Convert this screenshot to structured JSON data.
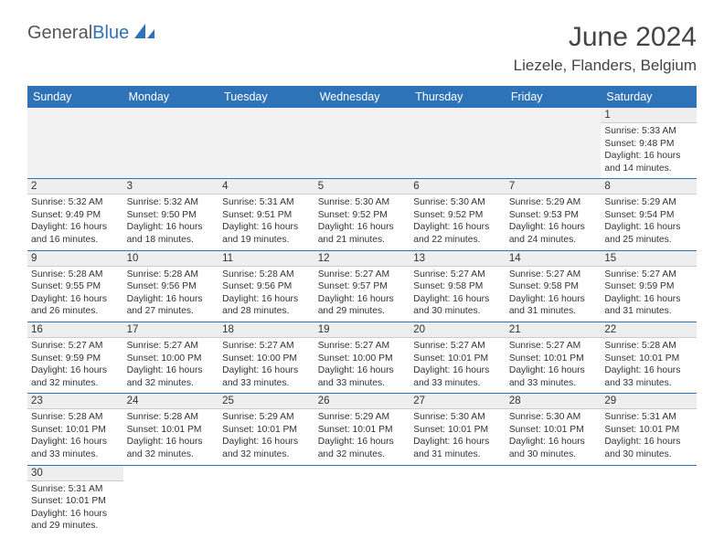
{
  "brand": {
    "part1": "General",
    "part2": "Blue"
  },
  "title": "June 2024",
  "location": "Liezele, Flanders, Belgium",
  "colors": {
    "header_bg": "#2e72b8",
    "header_text": "#ffffff",
    "daynum_bg": "#eeeeee",
    "row_border": "#2e72b8",
    "text": "#333333",
    "title_text": "#444444"
  },
  "weekdays": [
    "Sunday",
    "Monday",
    "Tuesday",
    "Wednesday",
    "Thursday",
    "Friday",
    "Saturday"
  ],
  "weeks": [
    [
      null,
      null,
      null,
      null,
      null,
      null,
      {
        "n": "1",
        "sr": "Sunrise: 5:33 AM",
        "ss": "Sunset: 9:48 PM",
        "d1": "Daylight: 16 hours",
        "d2": "and 14 minutes."
      }
    ],
    [
      {
        "n": "2",
        "sr": "Sunrise: 5:32 AM",
        "ss": "Sunset: 9:49 PM",
        "d1": "Daylight: 16 hours",
        "d2": "and 16 minutes."
      },
      {
        "n": "3",
        "sr": "Sunrise: 5:32 AM",
        "ss": "Sunset: 9:50 PM",
        "d1": "Daylight: 16 hours",
        "d2": "and 18 minutes."
      },
      {
        "n": "4",
        "sr": "Sunrise: 5:31 AM",
        "ss": "Sunset: 9:51 PM",
        "d1": "Daylight: 16 hours",
        "d2": "and 19 minutes."
      },
      {
        "n": "5",
        "sr": "Sunrise: 5:30 AM",
        "ss": "Sunset: 9:52 PM",
        "d1": "Daylight: 16 hours",
        "d2": "and 21 minutes."
      },
      {
        "n": "6",
        "sr": "Sunrise: 5:30 AM",
        "ss": "Sunset: 9:52 PM",
        "d1": "Daylight: 16 hours",
        "d2": "and 22 minutes."
      },
      {
        "n": "7",
        "sr": "Sunrise: 5:29 AM",
        "ss": "Sunset: 9:53 PM",
        "d1": "Daylight: 16 hours",
        "d2": "and 24 minutes."
      },
      {
        "n": "8",
        "sr": "Sunrise: 5:29 AM",
        "ss": "Sunset: 9:54 PM",
        "d1": "Daylight: 16 hours",
        "d2": "and 25 minutes."
      }
    ],
    [
      {
        "n": "9",
        "sr": "Sunrise: 5:28 AM",
        "ss": "Sunset: 9:55 PM",
        "d1": "Daylight: 16 hours",
        "d2": "and 26 minutes."
      },
      {
        "n": "10",
        "sr": "Sunrise: 5:28 AM",
        "ss": "Sunset: 9:56 PM",
        "d1": "Daylight: 16 hours",
        "d2": "and 27 minutes."
      },
      {
        "n": "11",
        "sr": "Sunrise: 5:28 AM",
        "ss": "Sunset: 9:56 PM",
        "d1": "Daylight: 16 hours",
        "d2": "and 28 minutes."
      },
      {
        "n": "12",
        "sr": "Sunrise: 5:27 AM",
        "ss": "Sunset: 9:57 PM",
        "d1": "Daylight: 16 hours",
        "d2": "and 29 minutes."
      },
      {
        "n": "13",
        "sr": "Sunrise: 5:27 AM",
        "ss": "Sunset: 9:58 PM",
        "d1": "Daylight: 16 hours",
        "d2": "and 30 minutes."
      },
      {
        "n": "14",
        "sr": "Sunrise: 5:27 AM",
        "ss": "Sunset: 9:58 PM",
        "d1": "Daylight: 16 hours",
        "d2": "and 31 minutes."
      },
      {
        "n": "15",
        "sr": "Sunrise: 5:27 AM",
        "ss": "Sunset: 9:59 PM",
        "d1": "Daylight: 16 hours",
        "d2": "and 31 minutes."
      }
    ],
    [
      {
        "n": "16",
        "sr": "Sunrise: 5:27 AM",
        "ss": "Sunset: 9:59 PM",
        "d1": "Daylight: 16 hours",
        "d2": "and 32 minutes."
      },
      {
        "n": "17",
        "sr": "Sunrise: 5:27 AM",
        "ss": "Sunset: 10:00 PM",
        "d1": "Daylight: 16 hours",
        "d2": "and 32 minutes."
      },
      {
        "n": "18",
        "sr": "Sunrise: 5:27 AM",
        "ss": "Sunset: 10:00 PM",
        "d1": "Daylight: 16 hours",
        "d2": "and 33 minutes."
      },
      {
        "n": "19",
        "sr": "Sunrise: 5:27 AM",
        "ss": "Sunset: 10:00 PM",
        "d1": "Daylight: 16 hours",
        "d2": "and 33 minutes."
      },
      {
        "n": "20",
        "sr": "Sunrise: 5:27 AM",
        "ss": "Sunset: 10:01 PM",
        "d1": "Daylight: 16 hours",
        "d2": "and 33 minutes."
      },
      {
        "n": "21",
        "sr": "Sunrise: 5:27 AM",
        "ss": "Sunset: 10:01 PM",
        "d1": "Daylight: 16 hours",
        "d2": "and 33 minutes."
      },
      {
        "n": "22",
        "sr": "Sunrise: 5:28 AM",
        "ss": "Sunset: 10:01 PM",
        "d1": "Daylight: 16 hours",
        "d2": "and 33 minutes."
      }
    ],
    [
      {
        "n": "23",
        "sr": "Sunrise: 5:28 AM",
        "ss": "Sunset: 10:01 PM",
        "d1": "Daylight: 16 hours",
        "d2": "and 33 minutes."
      },
      {
        "n": "24",
        "sr": "Sunrise: 5:28 AM",
        "ss": "Sunset: 10:01 PM",
        "d1": "Daylight: 16 hours",
        "d2": "and 32 minutes."
      },
      {
        "n": "25",
        "sr": "Sunrise: 5:29 AM",
        "ss": "Sunset: 10:01 PM",
        "d1": "Daylight: 16 hours",
        "d2": "and 32 minutes."
      },
      {
        "n": "26",
        "sr": "Sunrise: 5:29 AM",
        "ss": "Sunset: 10:01 PM",
        "d1": "Daylight: 16 hours",
        "d2": "and 32 minutes."
      },
      {
        "n": "27",
        "sr": "Sunrise: 5:30 AM",
        "ss": "Sunset: 10:01 PM",
        "d1": "Daylight: 16 hours",
        "d2": "and 31 minutes."
      },
      {
        "n": "28",
        "sr": "Sunrise: 5:30 AM",
        "ss": "Sunset: 10:01 PM",
        "d1": "Daylight: 16 hours",
        "d2": "and 30 minutes."
      },
      {
        "n": "29",
        "sr": "Sunrise: 5:31 AM",
        "ss": "Sunset: 10:01 PM",
        "d1": "Daylight: 16 hours",
        "d2": "and 30 minutes."
      }
    ],
    [
      {
        "n": "30",
        "sr": "Sunrise: 5:31 AM",
        "ss": "Sunset: 10:01 PM",
        "d1": "Daylight: 16 hours",
        "d2": "and 29 minutes."
      },
      null,
      null,
      null,
      null,
      null,
      null
    ]
  ]
}
